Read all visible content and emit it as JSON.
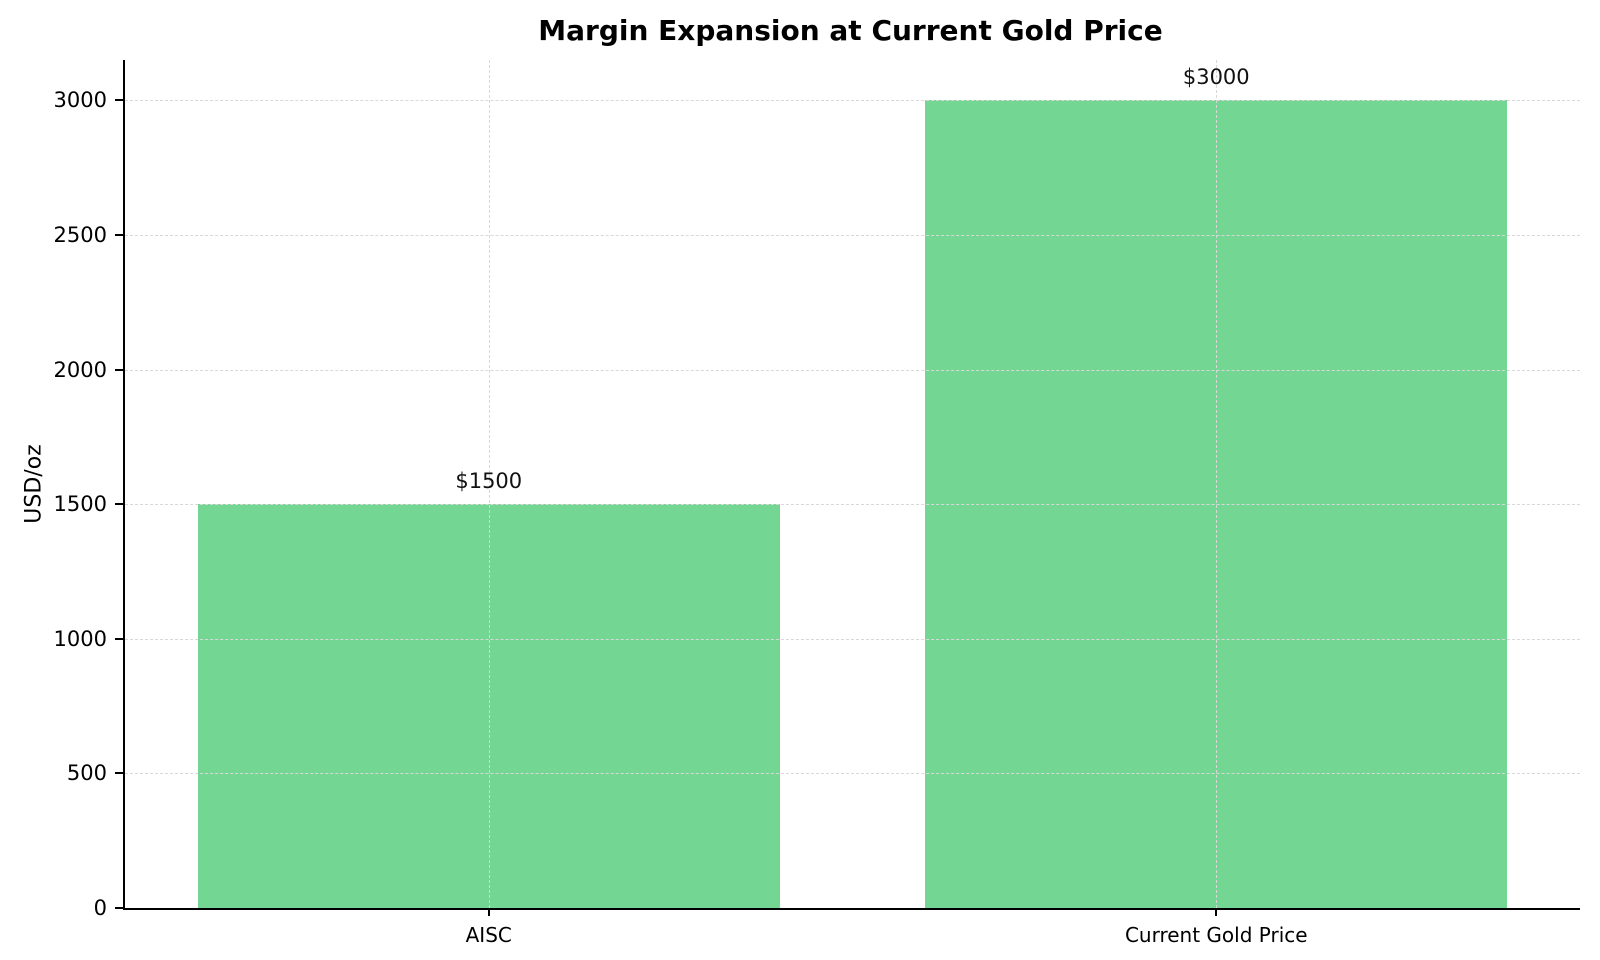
{
  "page": {
    "background_color": "#ffffff"
  },
  "chart_data": {
    "type": "bar",
    "title": "Margin Expansion at Current Gold Price",
    "xlabel": "",
    "ylabel": "USD/oz",
    "categories": [
      "AISC",
      "Current Gold Price"
    ],
    "values": [
      1500,
      3000
    ],
    "bar_labels": [
      "$1500",
      "$3000"
    ],
    "bar_color": "#74d693",
    "bar_width_fraction": 0.8,
    "ylim": [
      0,
      3150
    ],
    "yticks": [
      0,
      500,
      1000,
      1500,
      2000,
      2500,
      3000
    ],
    "grid": "on",
    "grid_color": "#d8d8d8",
    "grid_style": "dashed",
    "axis_color": "#000000",
    "legend_position": "none"
  }
}
